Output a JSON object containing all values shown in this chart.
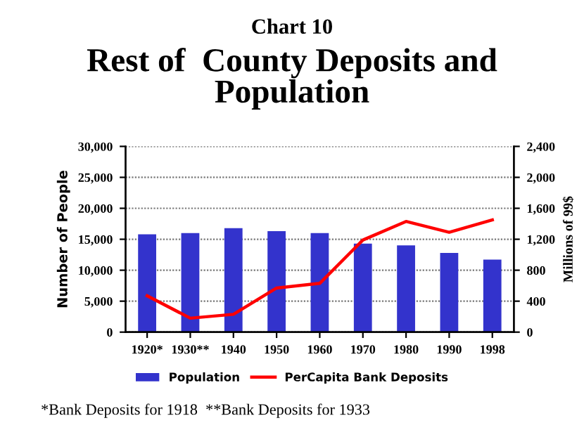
{
  "chart_data": {
    "type": "bar",
    "title": "Chart 10",
    "subtitle": "Rest of  County Deposits and\nPopulation",
    "categories": [
      "1920*",
      "1930**",
      "1940",
      "1950",
      "1960",
      "1970",
      "1980",
      "1990",
      "1998"
    ],
    "series": [
      {
        "name": "Population",
        "color": "#3333cc",
        "values": [
          15800,
          16000,
          16800,
          16300,
          16000,
          14300,
          14000,
          12800,
          11700
        ]
      },
      {
        "name": "PerCapita Bank Deposits",
        "type": "line",
        "axis": "y2",
        "color": "#ff0000",
        "values": [
          470,
          180,
          230,
          570,
          630,
          1190,
          1430,
          1290,
          1450
        ]
      }
    ],
    "ylabel": "Number of People",
    "y2label": "Millions of 99$",
    "ylim": [
      0,
      30000
    ],
    "yticks": [
      {
        "value": 0,
        "label": "0"
      },
      {
        "value": 5000,
        "label": "5,000"
      },
      {
        "value": 10000,
        "label": "10,000"
      },
      {
        "value": 15000,
        "label": "15,000"
      },
      {
        "value": 20000,
        "label": "20,000"
      },
      {
        "value": 25000,
        "label": "25,000"
      },
      {
        "value": 30000,
        "label": "30,000"
      }
    ],
    "y2lim": [
      0,
      2400
    ],
    "y2ticks": [
      {
        "value": 0,
        "label": "0"
      },
      {
        "value": 400,
        "label": "400"
      },
      {
        "value": 800,
        "label": "800"
      },
      {
        "value": 1200,
        "label": "1,200"
      },
      {
        "value": 1600,
        "label": "1,600"
      },
      {
        "value": 2000,
        "label": "2,000"
      },
      {
        "value": 2400,
        "label": "2,400"
      }
    ],
    "grid": "y",
    "legend": "bottom",
    "annotations": [
      "*Bank Deposits for 1918  **Bank Deposits for 1933"
    ]
  }
}
